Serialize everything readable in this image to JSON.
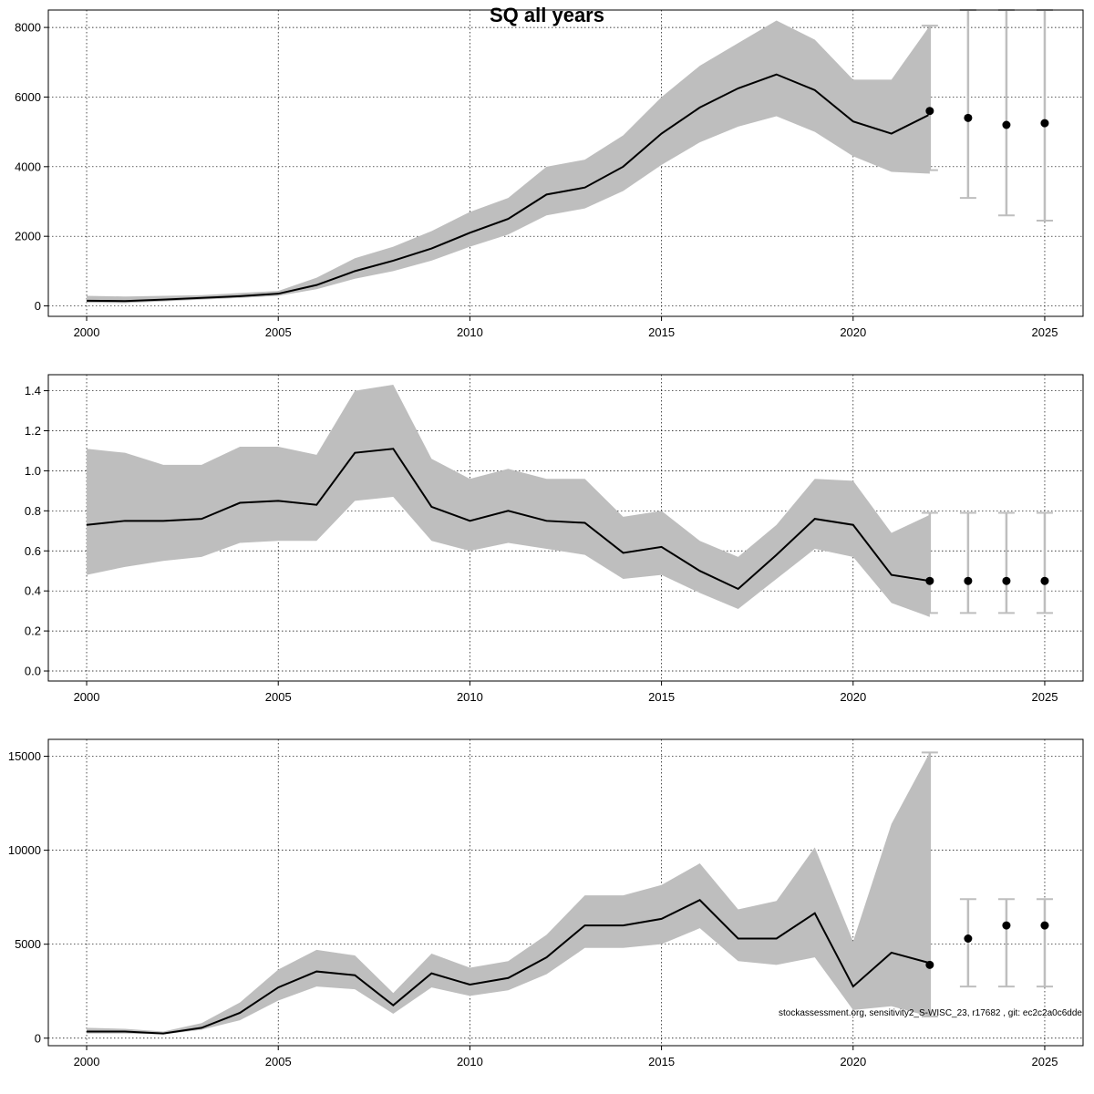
{
  "title": "SQ all years",
  "footer": "stockassessment.org, sensitivity2_S-WISC_23, r17682 , git: ec2c2a0c6dde",
  "colors": {
    "band": "#bebebe",
    "line": "#000000",
    "errorbar": "#bebebe",
    "point": "#000000",
    "grid": "#000000"
  },
  "chart_data": [
    {
      "type": "line",
      "title": "SQ all years",
      "xlabel": "",
      "ylabel": "",
      "xlim": [
        1999,
        2026
      ],
      "ylim": [
        -300,
        8500
      ],
      "xticks": [
        2000,
        2005,
        2010,
        2015,
        2020,
        2025
      ],
      "xtick_labels": [
        "2000",
        "2005",
        "2010",
        "2015",
        "2020",
        "2025"
      ],
      "yticks": [
        0,
        2000,
        4000,
        6000,
        8000
      ],
      "ytick_labels": [
        "0",
        "2000",
        "4000",
        "6000",
        "8000"
      ],
      "grid": true,
      "x": [
        2000,
        2001,
        2002,
        2003,
        2004,
        2005,
        2006,
        2007,
        2008,
        2009,
        2010,
        2011,
        2012,
        2013,
        2014,
        2015,
        2016,
        2017,
        2018,
        2019,
        2020,
        2021,
        2022
      ],
      "estimate": [
        150,
        140,
        180,
        230,
        280,
        350,
        600,
        1000,
        1300,
        1650,
        2100,
        2500,
        3200,
        3400,
        4000,
        4950,
        5700,
        6250,
        6650,
        6200,
        5300,
        4950,
        5500
      ],
      "lower": [
        90,
        80,
        130,
        180,
        230,
        290,
        480,
        780,
        1000,
        1300,
        1700,
        2050,
        2600,
        2800,
        3300,
        4050,
        4700,
        5150,
        5450,
        5000,
        4300,
        3850,
        3800
      ],
      "upper": [
        290,
        270,
        290,
        310,
        370,
        430,
        810,
        1370,
        1700,
        2150,
        2700,
        3100,
        4000,
        4200,
        4900,
        6000,
        6900,
        7550,
        8200,
        7650,
        6500,
        6500,
        8050
      ],
      "projection": {
        "years": [
          2022,
          2023,
          2024,
          2025
        ],
        "median": [
          5600,
          5400,
          5200,
          5250
        ],
        "lower": [
          3900,
          3100,
          2600,
          2450
        ],
        "upper": [
          8050,
          8500,
          8500,
          8500
        ]
      }
    },
    {
      "type": "line",
      "xlabel": "",
      "ylabel": "",
      "xlim": [
        1999,
        2026
      ],
      "ylim": [
        -0.05,
        1.48
      ],
      "xticks": [
        2000,
        2005,
        2010,
        2015,
        2020,
        2025
      ],
      "xtick_labels": [
        "2000",
        "2005",
        "2010",
        "2015",
        "2020",
        "2025"
      ],
      "yticks": [
        0.0,
        0.2,
        0.4,
        0.6,
        0.8,
        1.0,
        1.2,
        1.4
      ],
      "ytick_labels": [
        "0.0",
        "0.2",
        "0.4",
        "0.6",
        "0.8",
        "1.0",
        "1.2",
        "1.4"
      ],
      "grid": true,
      "x": [
        2000,
        2001,
        2002,
        2003,
        2004,
        2005,
        2006,
        2007,
        2008,
        2009,
        2010,
        2011,
        2012,
        2013,
        2014,
        2015,
        2016,
        2017,
        2018,
        2019,
        2020,
        2021,
        2022
      ],
      "estimate": [
        0.73,
        0.75,
        0.75,
        0.76,
        0.84,
        0.85,
        0.83,
        1.09,
        1.11,
        0.82,
        0.75,
        0.8,
        0.75,
        0.74,
        0.59,
        0.62,
        0.5,
        0.41,
        0.58,
        0.76,
        0.73,
        0.48,
        0.45
      ],
      "lower": [
        0.48,
        0.52,
        0.55,
        0.57,
        0.64,
        0.65,
        0.65,
        0.85,
        0.87,
        0.65,
        0.6,
        0.64,
        0.61,
        0.58,
        0.46,
        0.48,
        0.39,
        0.31,
        0.46,
        0.61,
        0.57,
        0.34,
        0.27
      ],
      "upper": [
        1.11,
        1.09,
        1.03,
        1.03,
        1.12,
        1.12,
        1.08,
        1.4,
        1.43,
        1.06,
        0.96,
        1.01,
        0.96,
        0.96,
        0.77,
        0.8,
        0.65,
        0.57,
        0.73,
        0.96,
        0.95,
        0.69,
        0.78
      ],
      "projection": {
        "years": [
          2022,
          2023,
          2024,
          2025
        ],
        "median": [
          0.45,
          0.45,
          0.45,
          0.45
        ],
        "lower": [
          0.29,
          0.29,
          0.29,
          0.29
        ],
        "upper": [
          0.79,
          0.79,
          0.79,
          0.79
        ]
      }
    },
    {
      "type": "line",
      "xlabel": "",
      "ylabel": "",
      "xlim": [
        1999,
        2026
      ],
      "ylim": [
        -400,
        15900
      ],
      "xticks": [
        2000,
        2005,
        2010,
        2015,
        2020,
        2025
      ],
      "xtick_labels": [
        "2000",
        "2005",
        "2010",
        "2015",
        "2020",
        "2025"
      ],
      "yticks": [
        0,
        5000,
        10000,
        15000
      ],
      "ytick_labels": [
        "0",
        "5000",
        "10000",
        "15000"
      ],
      "grid": true,
      "x": [
        2000,
        2001,
        2002,
        2003,
        2004,
        2005,
        2006,
        2007,
        2008,
        2009,
        2010,
        2011,
        2012,
        2013,
        2014,
        2015,
        2016,
        2017,
        2018,
        2019,
        2020,
        2021,
        2022
      ],
      "estimate": [
        350,
        350,
        250,
        550,
        1350,
        2700,
        3550,
        3350,
        1750,
        3450,
        2850,
        3200,
        4300,
        6000,
        6000,
        6350,
        7350,
        5300,
        5300,
        6650,
        2750,
        4550,
        4000
      ],
      "lower": [
        250,
        250,
        200,
        450,
        950,
        2000,
        2750,
        2600,
        1300,
        2700,
        2250,
        2550,
        3400,
        4800,
        4800,
        5000,
        5850,
        4100,
        3900,
        4300,
        1500,
        1700,
        1150
      ],
      "upper": [
        550,
        500,
        350,
        800,
        1900,
        3650,
        4700,
        4400,
        2400,
        4500,
        3750,
        4100,
        5500,
        7600,
        7600,
        8150,
        9300,
        6850,
        7300,
        10150,
        5150,
        11400,
        15200
      ],
      "projection": {
        "years": [
          2022,
          2023,
          2024,
          2025
        ],
        "median": [
          3900,
          5300,
          6000,
          6000
        ],
        "lower": [
          1150,
          2750,
          2750,
          2750
        ],
        "upper": [
          15200,
          7400,
          7400,
          7400
        ]
      }
    }
  ]
}
